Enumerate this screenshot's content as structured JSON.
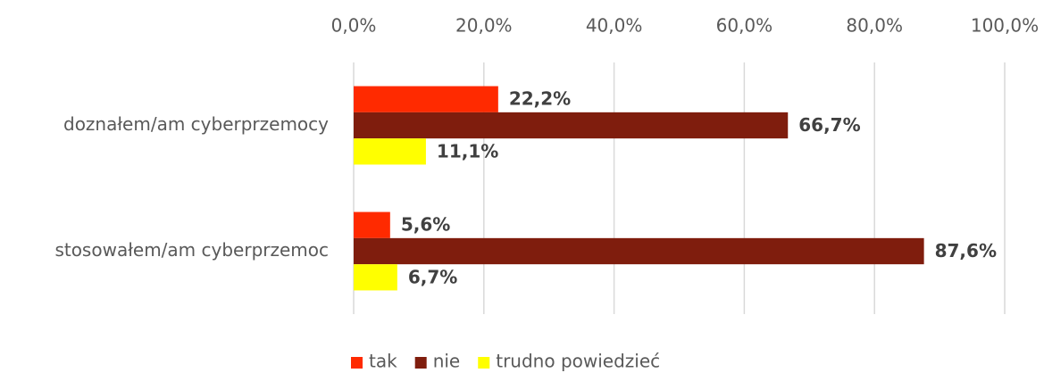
{
  "chart_data": {
    "type": "bar",
    "orientation": "horizontal",
    "categories": [
      "doznałem/am cyberprzemocy",
      "stosowałem/am cyberprzemoc"
    ],
    "series": [
      {
        "name": "tak",
        "color": "#ff2a00",
        "values": [
          22.2,
          5.6
        ],
        "value_labels": [
          "22,2%",
          "5,6%"
        ]
      },
      {
        "name": "nie",
        "color": "#7f1d0d",
        "values": [
          66.7,
          87.6
        ],
        "value_labels": [
          "66,7%",
          "87,6%"
        ]
      },
      {
        "name": "trudno powiedzieć",
        "color": "#ffff00",
        "values": [
          11.1,
          6.7
        ],
        "value_labels": [
          "11,1%",
          "6,7%"
        ]
      }
    ],
    "xlim": [
      0,
      100
    ],
    "xticks": [
      {
        "value": 0,
        "label": "0,0%"
      },
      {
        "value": 20,
        "label": "20,0%"
      },
      {
        "value": 40,
        "label": "40,0%"
      },
      {
        "value": 60,
        "label": "60,0%"
      },
      {
        "value": 80,
        "label": "80,0%"
      },
      {
        "value": 100,
        "label": "100,0%"
      }
    ],
    "grid": true,
    "legend": "bottom"
  }
}
